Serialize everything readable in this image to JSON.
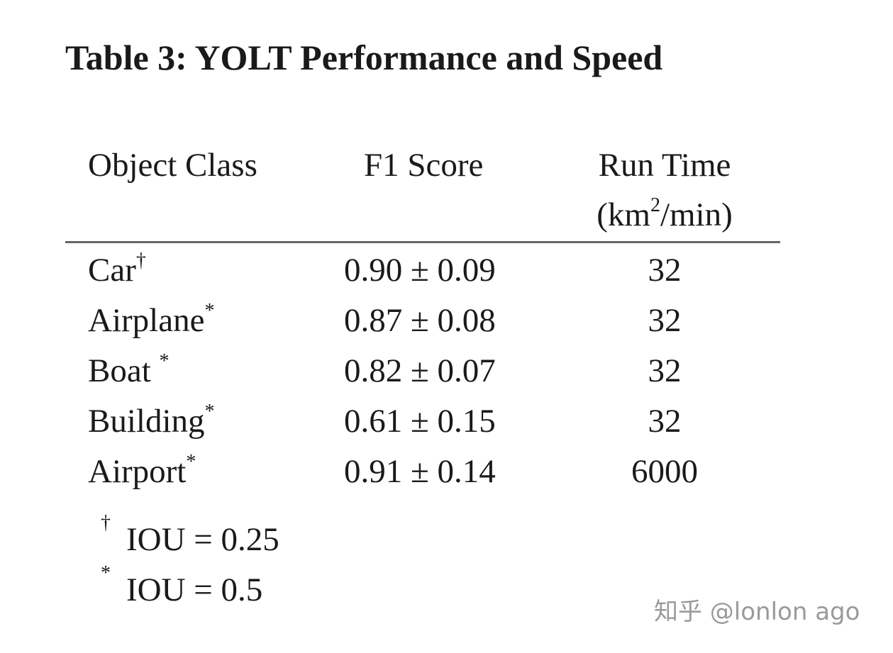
{
  "title": "Table 3: YOLT Performance and Speed",
  "table": {
    "header": {
      "object_class": "Object Class",
      "f1_score": "F1 Score",
      "run_time": "Run Time",
      "unit_open": "(km",
      "unit_sup": "2",
      "unit_close": "/min)"
    },
    "rows": [
      {
        "name": "Car",
        "marker": "†",
        "f1": "0.90 ± 0.09",
        "run_time": 32
      },
      {
        "name": "Airplane",
        "marker": "*",
        "f1": "0.87 ± 0.08",
        "run_time": 32
      },
      {
        "name": "Boat ",
        "marker": "*",
        "f1": "0.82 ± 0.07",
        "run_time": 32
      },
      {
        "name": "Building",
        "marker": "*",
        "f1": "0.61 ± 0.15",
        "run_time": 32
      },
      {
        "name": "Airport",
        "marker": "*",
        "f1": "0.91 ± 0.14",
        "run_time": 6000
      }
    ],
    "footnotes": [
      {
        "marker": "†",
        "text": "IOU = 0.25"
      },
      {
        "marker": "*",
        "text": "IOU = 0.5"
      }
    ]
  },
  "watermark": "知乎 @lonlon ago"
}
